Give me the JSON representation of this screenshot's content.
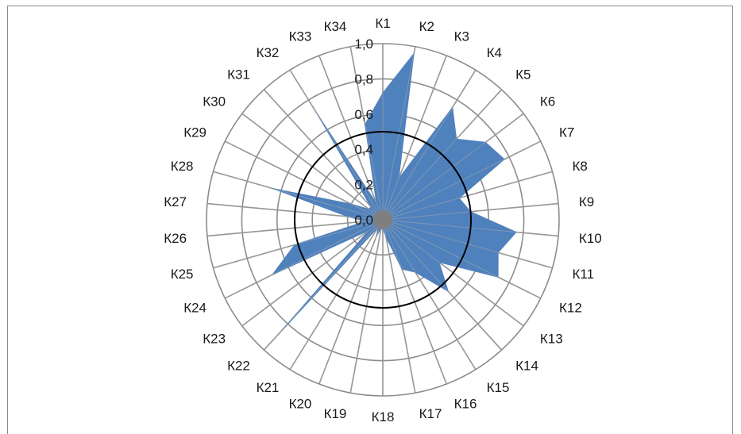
{
  "chart_data": {
    "type": "radar",
    "categories": [
      "К1",
      "К2",
      "К3",
      "К4",
      "К5",
      "К6",
      "К7",
      "К8",
      "К9",
      "К10",
      "К11",
      "К12",
      "К13",
      "К14",
      "К15",
      "К16",
      "К17",
      "К18",
      "К19",
      "К20",
      "К21",
      "К22",
      "К23",
      "К24",
      "К25",
      "К26",
      "К27",
      "К28",
      "К29",
      "К30",
      "К31",
      "К32",
      "К33",
      "К34"
    ],
    "series": [
      {
        "values": [
          0.72,
          0.96,
          0.25,
          0.75,
          0.62,
          0.73,
          0.77,
          0.45,
          0.5,
          0.76,
          0.68,
          0.73,
          0.4,
          0.55,
          0.35,
          0.3,
          0.1,
          0.05,
          0.05,
          0.1,
          0.05,
          0.85,
          0.1,
          0.7,
          0.52,
          0.1,
          0.2,
          0.65,
          0.2,
          0.1,
          0.1,
          0.7,
          0.1,
          0.55
        ],
        "color": "#4f81bd"
      }
    ],
    "radial_ticks": [
      "0,0",
      "0,2",
      "0,4",
      "0,6",
      "0,8",
      "1,0"
    ],
    "rlim": [
      0,
      1.0
    ],
    "reference_circle": 0.5,
    "grid": true,
    "legend": "none"
  }
}
